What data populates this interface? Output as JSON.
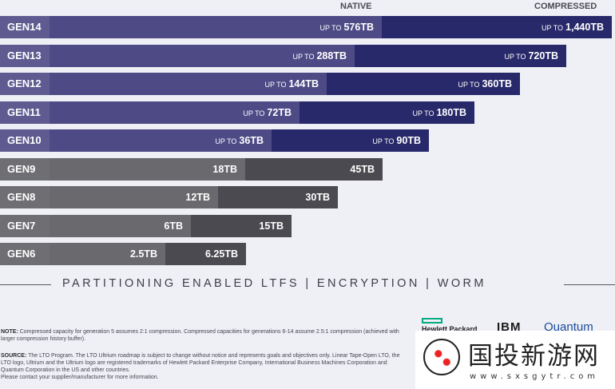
{
  "chart_data": {
    "type": "bar",
    "orientation": "horizontal",
    "stacked": true,
    "legend": [
      "NATIVE",
      "COMPRESSED"
    ],
    "categories": [
      "GEN14",
      "GEN13",
      "GEN12",
      "GEN11",
      "GEN10",
      "GEN9",
      "GEN8",
      "GEN7",
      "GEN6"
    ],
    "series": [
      {
        "name": "NATIVE",
        "values": [
          576,
          288,
          144,
          72,
          36,
          18,
          12,
          6,
          2.5
        ],
        "labels": [
          "576TB",
          "288TB",
          "144TB",
          "72TB",
          "36TB",
          "18TB",
          "12TB",
          "6TB",
          "2.5TB"
        ]
      },
      {
        "name": "COMPRESSED",
        "values": [
          1440,
          720,
          360,
          180,
          90,
          45,
          30,
          15,
          6.25
        ],
        "labels": [
          "1,440TB",
          "720TB",
          "360TB",
          "180TB",
          "90TB",
          "45TB",
          "30TB",
          "15TB",
          "6.25TB"
        ]
      }
    ],
    "prefix": "UP TO",
    "prefixed_rows": [
      "GEN14",
      "GEN13",
      "GEN12",
      "GEN11",
      "GEN10"
    ],
    "colors": {
      "future_label": "#5f5b91",
      "future_native": "#4e4a86",
      "future_compressed": "#28296a",
      "current_label": "#6e6e73",
      "current_native": "#69696e",
      "current_compressed": "#4a4a50"
    }
  },
  "features": "PARTITIONING  ENABLED  LTFS  |  ENCRYPTION  |  WORM",
  "note": {
    "label": "NOTE:",
    "text": " Compressed capacity for generation 5 assumes 2:1 compression. Compressed capacities for generations 6-14 assume 2.5:1 compression (achieved with larger compression history buffer)."
  },
  "source": {
    "label": "SOURCE:",
    "text": " The LTO Program. The LTO Ultrium roadmap is subject to change without notice and represents goals and objectives only. Linear Tape-Open LTO, the LTO logo, Ultrium and the Ultrium logo are registered trademarks of Hewlett Packard Enterprise Company, International Business Machines Corporation and Quantum Corporation in the US and other countries.",
    "contact": "Please contact your supplier/manufacturer for more information."
  },
  "logos": {
    "hpe": "Hewlett Packard",
    "ibm": "IBM",
    "quantum": "Quantum"
  },
  "watermark": {
    "title": "国投新游网",
    "url": "www.sxsgytr.com"
  }
}
